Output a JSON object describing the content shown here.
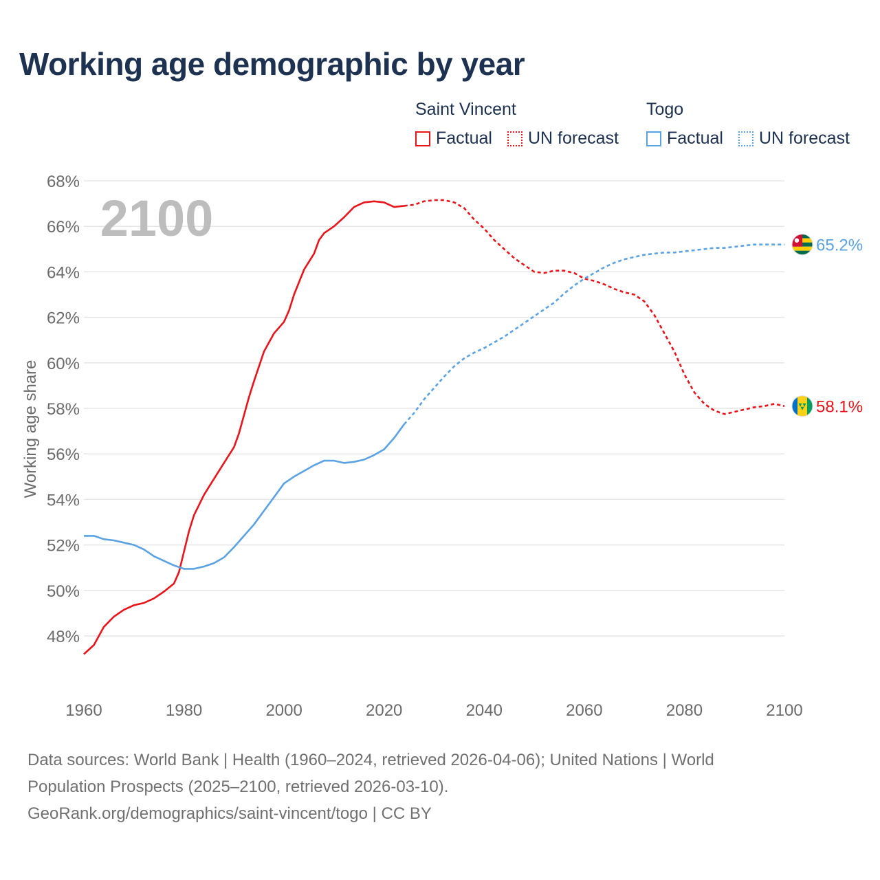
{
  "title": "Working age demographic by year",
  "legend": {
    "groups": [
      {
        "name": "Saint Vincent",
        "color": "#e8141a",
        "items": [
          "Factual",
          "UN forecast"
        ]
      },
      {
        "name": "Togo",
        "color": "#5aa2e2",
        "items": [
          "Factual",
          "UN forecast"
        ]
      }
    ]
  },
  "year_watermark": "2100",
  "chart_data": {
    "type": "line",
    "title": "Working age demographic by year",
    "xlabel": "",
    "ylabel": "Working age share",
    "xlim": [
      1960,
      2100
    ],
    "ylim": [
      46,
      68
    ],
    "x_ticks": [
      "1960",
      "1980",
      "2000",
      "2020",
      "2040",
      "2060",
      "2080",
      "2100"
    ],
    "y_ticks": [
      "48%",
      "50%",
      "52%",
      "54%",
      "56%",
      "58%",
      "60%",
      "62%",
      "64%",
      "66%",
      "68%"
    ],
    "grid": true,
    "factual_range": [
      1960,
      2024
    ],
    "forecast_range": [
      2024,
      2100
    ],
    "series": [
      {
        "name": "Saint Vincent",
        "color": "#e8141a",
        "end_label": "58.1%",
        "flag": "saint-vincent-flag-icon",
        "points": [
          [
            1960,
            47.2
          ],
          [
            1962,
            47.6
          ],
          [
            1964,
            48.4
          ],
          [
            1966,
            48.85
          ],
          [
            1968,
            49.15
          ],
          [
            1970,
            49.35
          ],
          [
            1972,
            49.45
          ],
          [
            1974,
            49.65
          ],
          [
            1976,
            49.95
          ],
          [
            1978,
            50.3
          ],
          [
            1979,
            50.8
          ],
          [
            1980,
            51.7
          ],
          [
            1981,
            52.6
          ],
          [
            1982,
            53.3
          ],
          [
            1984,
            54.2
          ],
          [
            1986,
            54.9
          ],
          [
            1988,
            55.6
          ],
          [
            1990,
            56.3
          ],
          [
            1991,
            56.9
          ],
          [
            1992,
            57.7
          ],
          [
            1993,
            58.5
          ],
          [
            1994,
            59.2
          ],
          [
            1996,
            60.5
          ],
          [
            1998,
            61.3
          ],
          [
            2000,
            61.8
          ],
          [
            2001,
            62.3
          ],
          [
            2002,
            63.0
          ],
          [
            2004,
            64.1
          ],
          [
            2006,
            64.8
          ],
          [
            2007,
            65.4
          ],
          [
            2008,
            65.7
          ],
          [
            2010,
            66.0
          ],
          [
            2012,
            66.4
          ],
          [
            2014,
            66.85
          ],
          [
            2016,
            67.05
          ],
          [
            2018,
            67.1
          ],
          [
            2020,
            67.05
          ],
          [
            2022,
            66.85
          ],
          [
            2024,
            66.9
          ],
          [
            2026,
            66.95
          ],
          [
            2028,
            67.1
          ],
          [
            2030,
            67.15
          ],
          [
            2032,
            67.15
          ],
          [
            2034,
            67.05
          ],
          [
            2036,
            66.8
          ],
          [
            2038,
            66.3
          ],
          [
            2040,
            65.9
          ],
          [
            2042,
            65.4
          ],
          [
            2044,
            65.0
          ],
          [
            2046,
            64.6
          ],
          [
            2048,
            64.3
          ],
          [
            2050,
            64.0
          ],
          [
            2052,
            63.95
          ],
          [
            2054,
            64.05
          ],
          [
            2056,
            64.05
          ],
          [
            2058,
            63.95
          ],
          [
            2060,
            63.7
          ],
          [
            2062,
            63.6
          ],
          [
            2064,
            63.45
          ],
          [
            2066,
            63.25
          ],
          [
            2068,
            63.1
          ],
          [
            2070,
            63.0
          ],
          [
            2072,
            62.7
          ],
          [
            2074,
            62.1
          ],
          [
            2076,
            61.3
          ],
          [
            2078,
            60.5
          ],
          [
            2080,
            59.5
          ],
          [
            2082,
            58.7
          ],
          [
            2084,
            58.2
          ],
          [
            2086,
            57.9
          ],
          [
            2088,
            57.75
          ],
          [
            2090,
            57.85
          ],
          [
            2092,
            57.95
          ],
          [
            2094,
            58.05
          ],
          [
            2096,
            58.1
          ],
          [
            2098,
            58.2
          ],
          [
            2100,
            58.1
          ]
        ]
      },
      {
        "name": "Togo",
        "color": "#5aa2e2",
        "end_label": "65.2%",
        "flag": "togo-flag-icon",
        "points": [
          [
            1960,
            52.4
          ],
          [
            1962,
            52.4
          ],
          [
            1964,
            52.25
          ],
          [
            1966,
            52.2
          ],
          [
            1968,
            52.1
          ],
          [
            1970,
            52.0
          ],
          [
            1972,
            51.8
          ],
          [
            1974,
            51.5
          ],
          [
            1976,
            51.3
          ],
          [
            1978,
            51.1
          ],
          [
            1980,
            50.95
          ],
          [
            1982,
            50.95
          ],
          [
            1984,
            51.05
          ],
          [
            1986,
            51.2
          ],
          [
            1988,
            51.45
          ],
          [
            1990,
            51.9
          ],
          [
            1992,
            52.4
          ],
          [
            1994,
            52.9
          ],
          [
            1996,
            53.5
          ],
          [
            1998,
            54.1
          ],
          [
            2000,
            54.7
          ],
          [
            2002,
            55.0
          ],
          [
            2004,
            55.25
          ],
          [
            2006,
            55.5
          ],
          [
            2008,
            55.7
          ],
          [
            2010,
            55.7
          ],
          [
            2012,
            55.6
          ],
          [
            2014,
            55.65
          ],
          [
            2016,
            55.75
          ],
          [
            2018,
            55.95
          ],
          [
            2020,
            56.2
          ],
          [
            2022,
            56.7
          ],
          [
            2024,
            57.3
          ],
          [
            2026,
            57.8
          ],
          [
            2028,
            58.4
          ],
          [
            2030,
            58.9
          ],
          [
            2032,
            59.4
          ],
          [
            2034,
            59.85
          ],
          [
            2036,
            60.2
          ],
          [
            2038,
            60.45
          ],
          [
            2040,
            60.65
          ],
          [
            2042,
            60.9
          ],
          [
            2044,
            61.15
          ],
          [
            2046,
            61.45
          ],
          [
            2048,
            61.75
          ],
          [
            2050,
            62.05
          ],
          [
            2052,
            62.35
          ],
          [
            2054,
            62.65
          ],
          [
            2056,
            63.05
          ],
          [
            2058,
            63.4
          ],
          [
            2060,
            63.7
          ],
          [
            2062,
            63.95
          ],
          [
            2064,
            64.2
          ],
          [
            2066,
            64.4
          ],
          [
            2068,
            64.55
          ],
          [
            2070,
            64.65
          ],
          [
            2072,
            64.75
          ],
          [
            2074,
            64.8
          ],
          [
            2076,
            64.85
          ],
          [
            2078,
            64.85
          ],
          [
            2080,
            64.9
          ],
          [
            2082,
            64.95
          ],
          [
            2084,
            65.0
          ],
          [
            2086,
            65.05
          ],
          [
            2088,
            65.05
          ],
          [
            2090,
            65.1
          ],
          [
            2092,
            65.15
          ],
          [
            2094,
            65.2
          ],
          [
            2096,
            65.2
          ],
          [
            2098,
            65.2
          ],
          [
            2100,
            65.2
          ]
        ]
      }
    ]
  },
  "footer": {
    "line1": "Data sources: World Bank | Health (1960–2024, retrieved 2026-04-06); United Nations | World",
    "line2": "Population Prospects (2025–2100, retrieved 2026-03-10).",
    "line3": "GeoRank.org/demographics/saint-vincent/togo | CC BY"
  }
}
